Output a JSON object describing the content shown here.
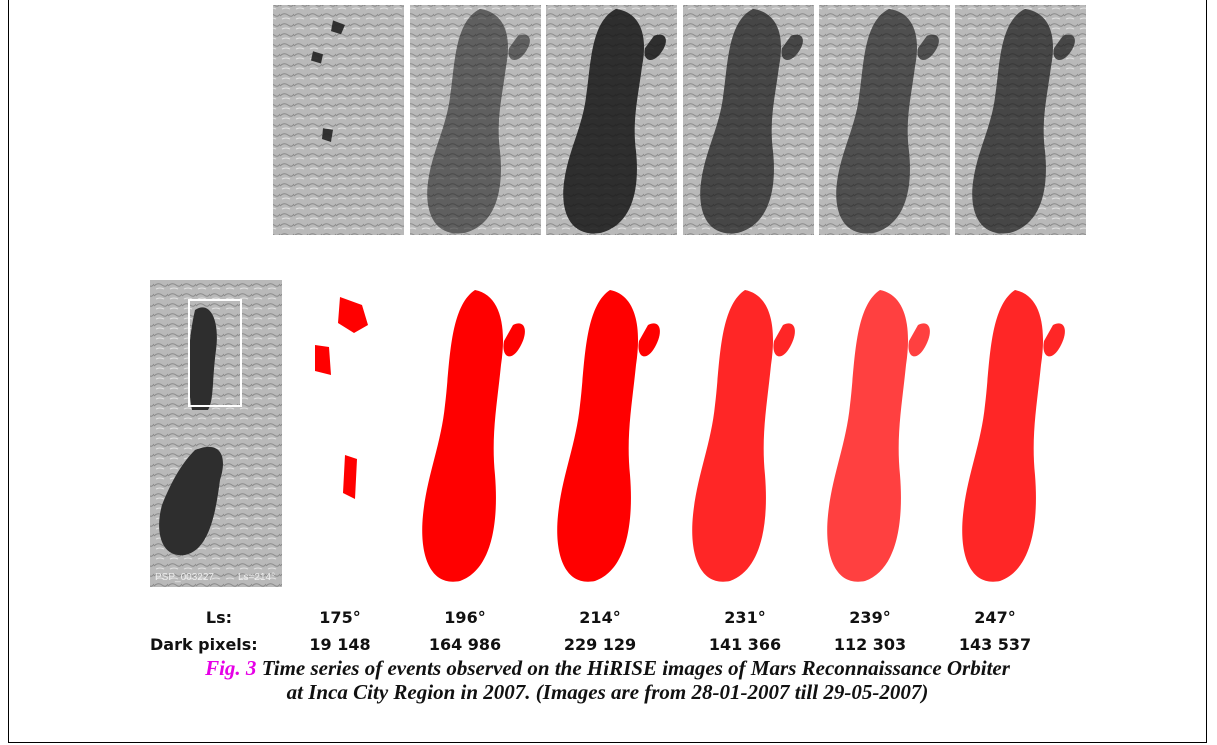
{
  "figure": {
    "inset_labels": [
      "PSP_003227",
      "Ls=214°"
    ],
    "ls_label": "Ls:",
    "dark_pixels_label": "Dark pixels:",
    "panels": [
      {
        "ls": "175°",
        "dark_pixels": "19 148"
      },
      {
        "ls": "196°",
        "dark_pixels": "164 986"
      },
      {
        "ls": "214°",
        "dark_pixels": "229 129"
      },
      {
        "ls": "231°",
        "dark_pixels": "141 366"
      },
      {
        "ls": "239°",
        "dark_pixels": "112 303"
      },
      {
        "ls": "247°",
        "dark_pixels": "143 537"
      }
    ]
  },
  "caption": {
    "label": "Fig. 3",
    "lines": [
      "Time series of events observed on the HiRISE images of Mars Reconnaissance Orbiter",
      "at Inca City Region in 2007. (Images are from 28-01-2007 till 29-05-2007)"
    ]
  }
}
